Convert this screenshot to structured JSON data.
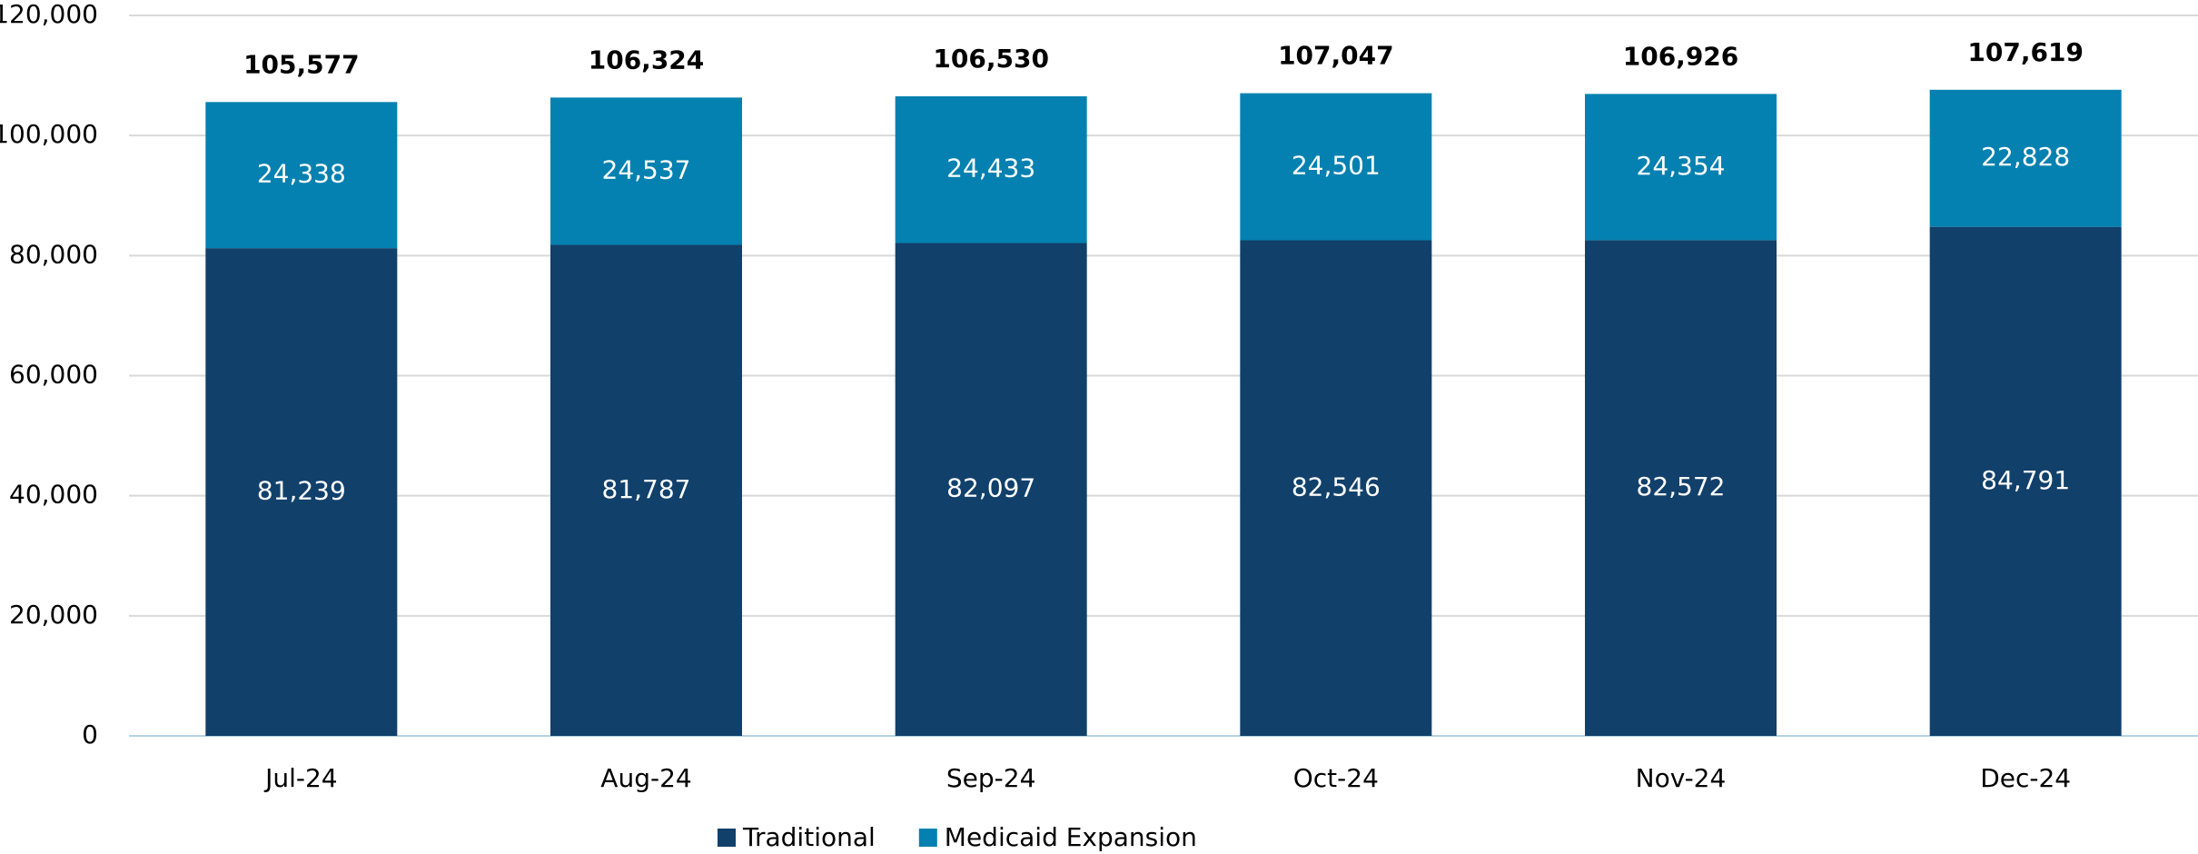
{
  "chart_data": {
    "type": "stacked_bar",
    "categories": [
      "Jul-24",
      "Aug-24",
      "Sep-24",
      "Oct-24",
      "Nov-24",
      "Dec-24"
    ],
    "series": [
      {
        "name": "Traditional",
        "color": "#11406b",
        "values": [
          81239,
          81787,
          82097,
          82546,
          82572,
          84791
        ],
        "value_labels": [
          "81,239",
          "81,787",
          "82,097",
          "82,546",
          "82,572",
          "84,791"
        ]
      },
      {
        "name": "Medicaid Expansion",
        "color": "#0481b0",
        "values": [
          24338,
          24537,
          24433,
          24501,
          24354,
          22828
        ],
        "value_labels": [
          "24,338",
          "24,537",
          "24,433",
          "24,501",
          "24,354",
          "22,828"
        ]
      }
    ],
    "total_labels": [
      "105,577",
      "106,324",
      "106,530",
      "107,047",
      "106,926",
      "107,619"
    ],
    "ylim": [
      0,
      120000
    ],
    "yticks": [
      0,
      {
        "value": 20000,
        "label": "20,000"
      },
      {
        "value": 40000,
        "label": "40,000"
      },
      {
        "value": 60000,
        "label": "60,000"
      },
      {
        "value": 80000,
        "label": "80,000"
      },
      {
        "value": 100000,
        "label": "100,000"
      },
      {
        "value": 120000,
        "label": "120,000"
      }
    ],
    "grid": true,
    "legend": "bottom"
  }
}
